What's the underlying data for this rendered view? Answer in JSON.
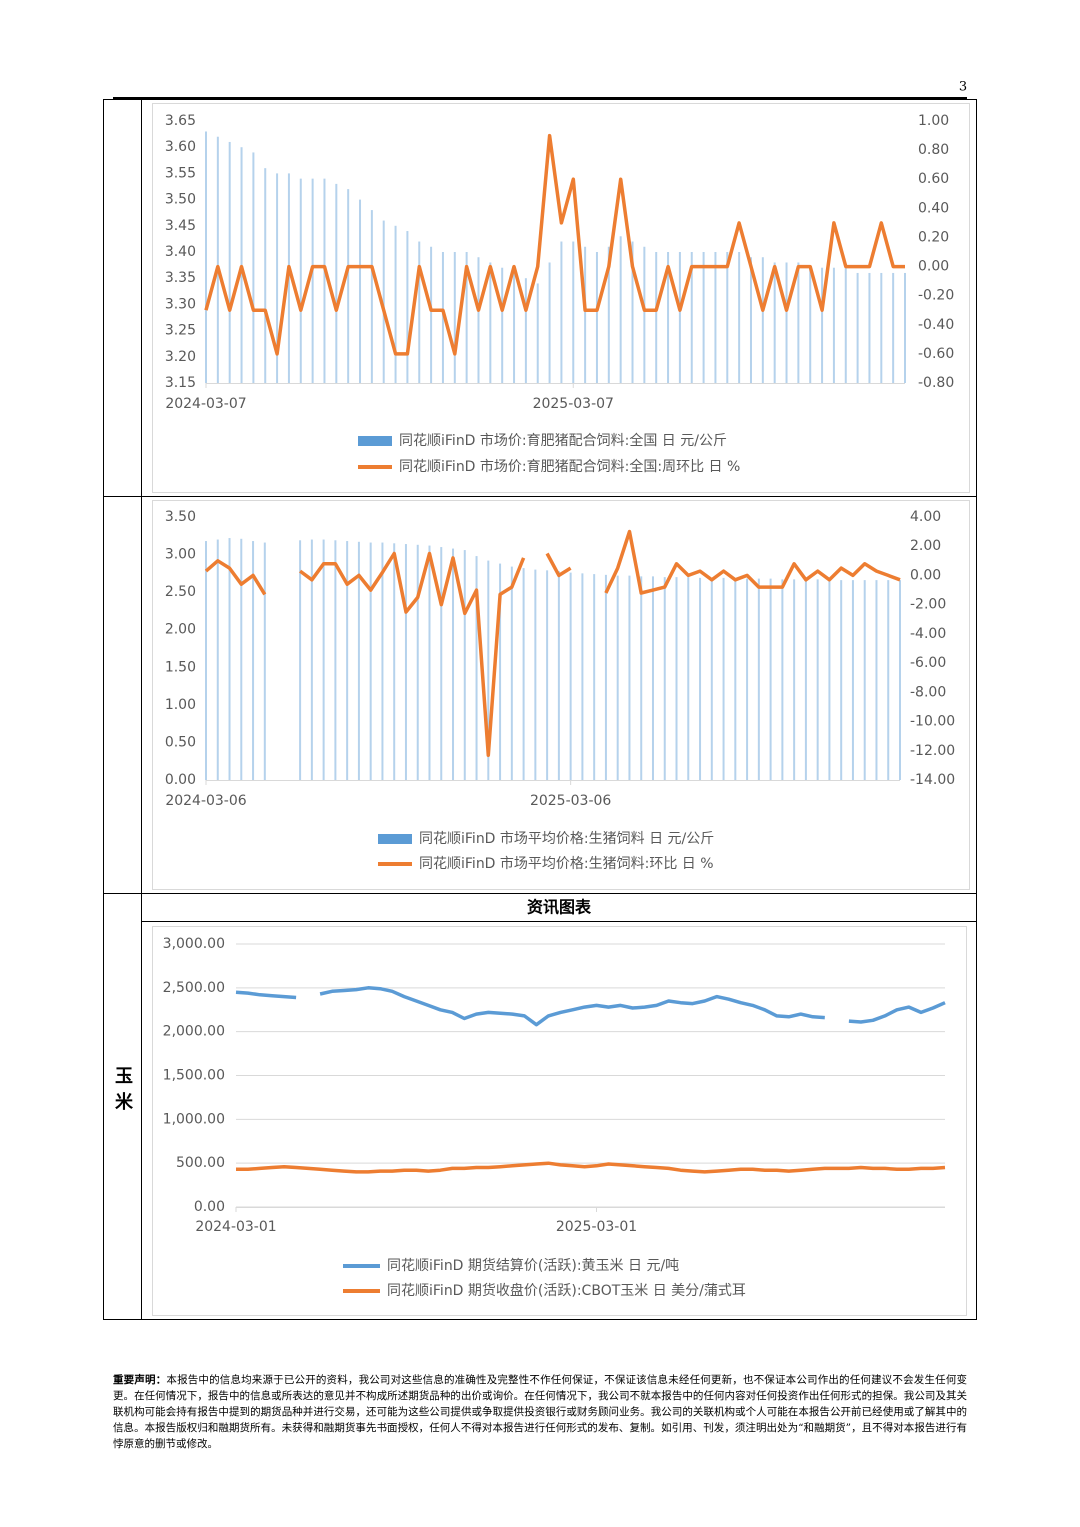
{
  "page_number": "3",
  "section_label": "玉米",
  "section_header": "资讯图表",
  "disclaimer": {
    "title": "重要声明：",
    "text": "本报告中的信息均来源于已公开的资料，我公司对这些信息的准确性及完整性不作任何保证，不保证该信息未经任何更新，也不保证本公司作出的任何建议不会发生任何变更。在任何情况下，报告中的信息或所表达的意见并不构成所述期货品种的出价或询价。在任何情况下，我公司不就本报告中的任何内容对任何投资作出任何形式的担保。我公司及其关联机构可能会持有报告中提到的期货品种并进行交易，还可能为这些公司提供或争取提供投资银行或财务顾问业务。我公司的关联机构或个人可能在本报告公开前已经使用或了解其中的信息。本报告版权归和融期货所有。未获得和融期货事先书面授权，任何人不得对本报告进行任何形式的发布、复制。如引用、刊发，须注明出处为“和融期货”，且不得对本报告进行有悖原意的删节或修改。"
  },
  "chart_data": [
    {
      "type": "combo",
      "categories": [
        "2024-03-07",
        null,
        null,
        null,
        null,
        null,
        null,
        null,
        null,
        null,
        null,
        null,
        null,
        null,
        null,
        null,
        null,
        null,
        null,
        null,
        null,
        null,
        null,
        null,
        null,
        null,
        null,
        null,
        null,
        null,
        null,
        "2025-03-07",
        null,
        null,
        null,
        null,
        null,
        null,
        null,
        null,
        null,
        null,
        null,
        null,
        null,
        null,
        null,
        null,
        null,
        null,
        null,
        null,
        null,
        null,
        null,
        null,
        null,
        null,
        null,
        null
      ],
      "ylim": [
        3.15,
        3.65
      ],
      "yticks": [
        {
          "value": 3.15,
          "label": "3.15"
        },
        {
          "value": 3.2,
          "label": "3.20"
        },
        {
          "value": 3.25,
          "label": "3.25"
        },
        {
          "value": 3.3,
          "label": "3.30"
        },
        {
          "value": 3.35,
          "label": "3.35"
        },
        {
          "value": 3.4,
          "label": "3.40"
        },
        {
          "value": 3.45,
          "label": "3.45"
        },
        {
          "value": 3.5,
          "label": "3.50"
        },
        {
          "value": 3.55,
          "label": "3.55"
        },
        {
          "value": 3.6,
          "label": "3.60"
        },
        {
          "value": 3.65,
          "label": "3.65"
        }
      ],
      "y2lim": [
        -0.8,
        1.0
      ],
      "y2ticks": [
        {
          "value": -0.8,
          "label": "-0.80"
        },
        {
          "value": -0.6,
          "label": "-0.60"
        },
        {
          "value": -0.4,
          "label": "-0.40"
        },
        {
          "value": -0.2,
          "label": "-0.20"
        },
        {
          "value": 0,
          "label": "0.00"
        },
        {
          "value": 0.2,
          "label": "0.20"
        },
        {
          "value": 0.4,
          "label": "0.40"
        },
        {
          "value": 0.6,
          "label": "0.60"
        },
        {
          "value": 0.8,
          "label": "0.80"
        },
        {
          "value": 1.0,
          "label": "1.00"
        }
      ],
      "grid": false,
      "series": [
        {
          "name": "同花顺iFinD 市场价:育肥猪配合饲料:全国 日 元/公斤",
          "type": "bar",
          "color": "#5b9bd5",
          "values": [
            3.63,
            3.62,
            3.61,
            3.6,
            3.59,
            3.56,
            3.55,
            3.55,
            3.54,
            3.54,
            3.54,
            3.53,
            3.52,
            3.5,
            3.48,
            3.46,
            3.45,
            3.44,
            3.42,
            3.41,
            3.4,
            3.4,
            3.4,
            3.39,
            3.38,
            3.37,
            3.36,
            3.35,
            3.34,
            3.38,
            3.42,
            3.42,
            3.41,
            3.4,
            3.41,
            3.43,
            3.42,
            3.41,
            3.4,
            3.4,
            3.4,
            3.4,
            3.4,
            3.4,
            3.4,
            3.4,
            3.39,
            3.39,
            3.38,
            3.38,
            3.38,
            3.37,
            3.37,
            3.37,
            3.37,
            3.36,
            3.36,
            3.36,
            3.36,
            3.36
          ]
        },
        {
          "name": "同花顺iFinD 市场价:育肥猪配合饲料:全国:周环比 日 %",
          "type": "line",
          "axis": "y2",
          "color": "#ed7d31",
          "values": [
            -0.3,
            0,
            -0.3,
            0,
            -0.3,
            -0.3,
            -0.6,
            0,
            -0.3,
            0,
            0,
            -0.3,
            0,
            0,
            0,
            -0.3,
            -0.6,
            -0.6,
            0,
            -0.3,
            -0.3,
            -0.6,
            0,
            -0.3,
            0,
            -0.3,
            0,
            -0.3,
            0,
            0.9,
            0.3,
            0.6,
            -0.3,
            -0.3,
            0,
            0.6,
            0,
            -0.3,
            -0.3,
            0,
            -0.3,
            0,
            0,
            0,
            0,
            0.3,
            0,
            -0.3,
            0,
            -0.3,
            0,
            0,
            -0.3,
            0.3,
            0,
            0,
            0,
            0.3,
            0,
            0
          ]
        }
      ]
    },
    {
      "type": "combo",
      "categories": [
        "2024-03-06",
        null,
        null,
        null,
        null,
        null,
        null,
        null,
        null,
        null,
        null,
        null,
        null,
        null,
        null,
        null,
        null,
        null,
        null,
        null,
        null,
        null,
        null,
        null,
        null,
        null,
        null,
        null,
        null,
        null,
        null,
        "2025-03-06",
        null,
        null,
        null,
        null,
        null,
        null,
        null,
        null,
        null,
        null,
        null,
        null,
        null,
        null,
        null,
        null,
        null,
        null,
        null,
        null,
        null,
        null,
        null,
        null,
        null,
        null,
        null,
        null
      ],
      "ylim": [
        0,
        3.5
      ],
      "yticks": [
        {
          "value": 0,
          "label": "0.00"
        },
        {
          "value": 0.5,
          "label": "0.50"
        },
        {
          "value": 1,
          "label": "1.00"
        },
        {
          "value": 1.5,
          "label": "1.50"
        },
        {
          "value": 2,
          "label": "2.00"
        },
        {
          "value": 2.5,
          "label": "2.50"
        },
        {
          "value": 3,
          "label": "3.00"
        },
        {
          "value": 3.5,
          "label": "3.50"
        }
      ],
      "y2lim": [
        -14,
        4
      ],
      "y2ticks": [
        {
          "value": -14,
          "label": "-14.00"
        },
        {
          "value": -12,
          "label": "-12.00"
        },
        {
          "value": -10,
          "label": "-10.00"
        },
        {
          "value": -8,
          "label": "-8.00"
        },
        {
          "value": -6,
          "label": "-6.00"
        },
        {
          "value": -4,
          "label": "-4.00"
        },
        {
          "value": -2,
          "label": "-2.00"
        },
        {
          "value": 0,
          "label": "0.00"
        },
        {
          "value": 2,
          "label": "2.00"
        },
        {
          "value": 4,
          "label": "4.00"
        }
      ],
      "grid": false,
      "series": [
        {
          "name": "同花顺iFinD 市场平均价格:生猪饲料 日 元/公斤",
          "type": "bar",
          "color": "#5b9bd5",
          "values": [
            3.18,
            3.2,
            3.22,
            3.21,
            3.18,
            3.16,
            null,
            null,
            3.19,
            3.2,
            3.2,
            3.19,
            3.18,
            3.17,
            3.16,
            3.16,
            3.15,
            3.14,
            3.13,
            3.12,
            3.1,
            3.08,
            3.06,
            2.98,
            2.92,
            2.88,
            2.84,
            2.82,
            2.8,
            2.79,
            2.78,
            2.76,
            2.75,
            2.74,
            2.73,
            2.72,
            2.72,
            2.71,
            2.71,
            2.7,
            2.7,
            2.7,
            2.69,
            2.69,
            2.69,
            2.68,
            2.68,
            2.68,
            2.68,
            2.67,
            2.67,
            2.67,
            2.67,
            2.66,
            2.66,
            2.66,
            2.66,
            2.66,
            2.66,
            2.66
          ]
        },
        {
          "name": "同花顺iFinD 市场平均价格:生猪饲料:环比 日 %",
          "type": "line",
          "axis": "y2",
          "color": "#ed7d31",
          "values": [
            0.3,
            1.0,
            0.5,
            -0.6,
            0,
            -1.3,
            null,
            null,
            0.3,
            -0.3,
            0.8,
            0.8,
            -0.6,
            0,
            -1.0,
            0.2,
            1.5,
            -2.5,
            -1.5,
            1.5,
            -2.0,
            1.2,
            -2.6,
            -1.0,
            -12.3,
            -1.3,
            -0.8,
            1.2,
            null,
            1.5,
            0,
            0.5,
            null,
            null,
            -1.2,
            0.5,
            3.0,
            -1.2,
            -1.0,
            -0.8,
            0.8,
            0,
            0.3,
            -0.3,
            0.3,
            -0.3,
            0,
            -0.8,
            -0.8,
            -0.8,
            0.8,
            -0.3,
            0.3,
            -0.3,
            0.5,
            0,
            0.8,
            0.3,
            0,
            -0.3
          ]
        }
      ]
    },
    {
      "type": "line",
      "categories": [
        "2024-03-01",
        null,
        null,
        null,
        null,
        null,
        null,
        null,
        null,
        null,
        null,
        null,
        null,
        null,
        null,
        null,
        null,
        null,
        null,
        null,
        null,
        null,
        null,
        null,
        null,
        null,
        null,
        null,
        null,
        null,
        "2025-03-01",
        null,
        null,
        null,
        null,
        null,
        null,
        null,
        null,
        null,
        null,
        null,
        null,
        null,
        null,
        null,
        null,
        null,
        null,
        null,
        null,
        null,
        null,
        null,
        null,
        null,
        null,
        null,
        null,
        null
      ],
      "ylim": [
        0,
        3000
      ],
      "yticks": [
        {
          "value": 0,
          "label": "0.00"
        },
        {
          "value": 500,
          "label": "500.00"
        },
        {
          "value": 1000,
          "label": "1,000.00"
        },
        {
          "value": 1500,
          "label": "1,500.00"
        },
        {
          "value": 2000,
          "label": "2,000.00"
        },
        {
          "value": 2500,
          "label": "2,500.00"
        },
        {
          "value": 3000,
          "label": "3,000.00"
        }
      ],
      "grid": true,
      "series": [
        {
          "name": "同花顺iFinD 期货结算价(活跃):黄玉米 日 元/吨",
          "type": "line",
          "color": "#5b9bd5",
          "values": [
            2450,
            2440,
            2420,
            2410,
            2400,
            2390,
            null,
            2430,
            2460,
            2470,
            2480,
            2500,
            2490,
            2460,
            2400,
            2350,
            2300,
            2250,
            2220,
            2150,
            2200,
            2220,
            2210,
            2200,
            2180,
            2080,
            2180,
            2220,
            2250,
            2280,
            2300,
            2280,
            2300,
            2270,
            2280,
            2300,
            2350,
            2330,
            2320,
            2350,
            2400,
            2370,
            2330,
            2300,
            2250,
            2180,
            2170,
            2200,
            2170,
            2160,
            null,
            2120,
            2110,
            2130,
            2180,
            2250,
            2280,
            2220,
            2270,
            2330
          ]
        },
        {
          "name": "同花顺iFinD 期货收盘价(活跃):CBOT玉米 日 美分/蒲式耳",
          "type": "line",
          "color": "#ed7d31",
          "values": [
            430,
            430,
            440,
            450,
            460,
            450,
            440,
            430,
            420,
            410,
            400,
            400,
            410,
            410,
            420,
            420,
            410,
            420,
            440,
            440,
            450,
            450,
            460,
            470,
            480,
            490,
            500,
            480,
            470,
            460,
            470,
            490,
            480,
            470,
            460,
            450,
            440,
            420,
            410,
            400,
            410,
            420,
            430,
            430,
            420,
            420,
            410,
            420,
            430,
            440,
            440,
            440,
            450,
            440,
            440,
            430,
            430,
            440,
            440,
            450
          ]
        }
      ]
    }
  ]
}
